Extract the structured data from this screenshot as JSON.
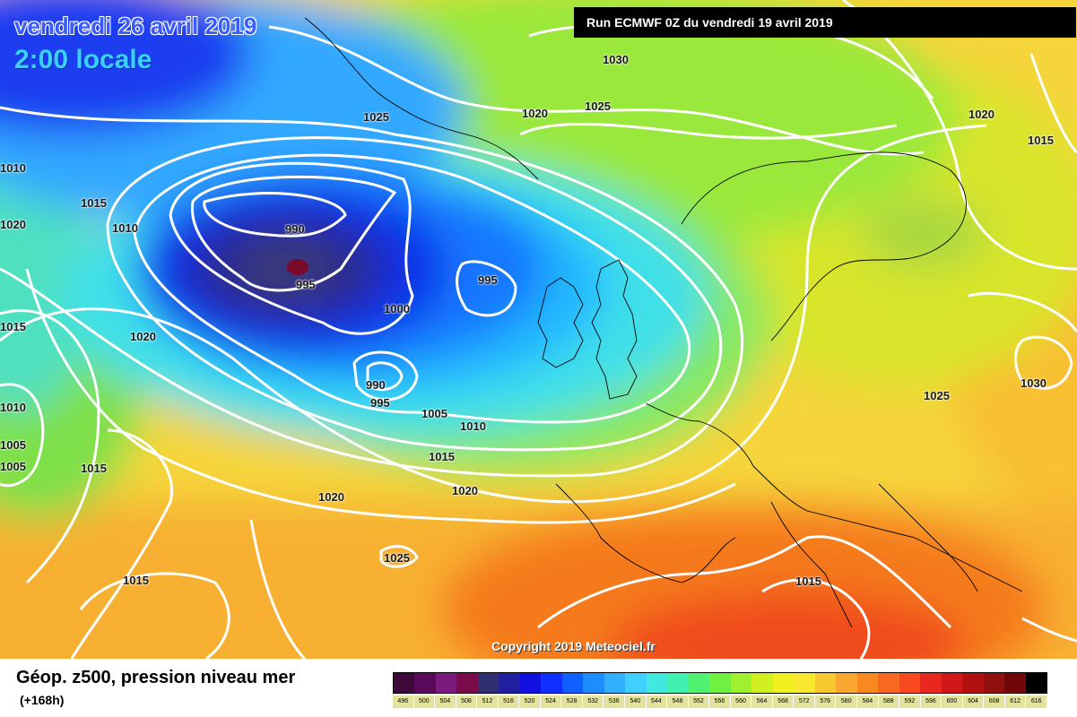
{
  "header": {
    "date_label": "vendredi 26 avril 2019",
    "time_label": "2:00 locale",
    "run_label": "Run ECMWF 0Z du vendredi 19 avril 2019"
  },
  "map": {
    "copyright": "Copyright 2019 Meteociel.fr",
    "isobar_labels": [
      "1030",
      "1025",
      "1020",
      "1025",
      "1020",
      "1015",
      "1010",
      "1015",
      "1010",
      "990",
      "995",
      "995",
      "1000",
      "990",
      "995",
      "1005",
      "1010",
      "1015",
      "1020",
      "1020",
      "1015",
      "1005",
      "1010",
      "1005",
      "1015",
      "1020",
      "1025",
      "1015",
      "1020",
      "1015",
      "1030",
      "1025"
    ],
    "low_center_color": "#7a0a2a"
  },
  "legend": {
    "title": "Géop. z500, pression niveau mer",
    "subtitle": "(+168h)",
    "scale_values": [
      "496",
      "500",
      "504",
      "508",
      "512",
      "516",
      "520",
      "524",
      "528",
      "532",
      "536",
      "540",
      "544",
      "548",
      "552",
      "556",
      "560",
      "564",
      "568",
      "572",
      "576",
      "580",
      "584",
      "588",
      "592",
      "596",
      "600",
      "604",
      "608",
      "612",
      "616"
    ],
    "scale_colors": [
      "#3d0a3a",
      "#5a0a5a",
      "#7a1a7a",
      "#7a0a4a",
      "#303070",
      "#2020a0",
      "#1010e0",
      "#1030ff",
      "#1060ff",
      "#1c8cff",
      "#30b0ff",
      "#40d0ff",
      "#40e8e0",
      "#40f0b0",
      "#50f070",
      "#70f040",
      "#a0f030",
      "#d0f020",
      "#f0f020",
      "#f8e830",
      "#f8c830",
      "#f8a830",
      "#f88820",
      "#f86820",
      "#f84820",
      "#e82820",
      "#d01818",
      "#b01010",
      "#901010",
      "#700808",
      "#000000"
    ]
  }
}
